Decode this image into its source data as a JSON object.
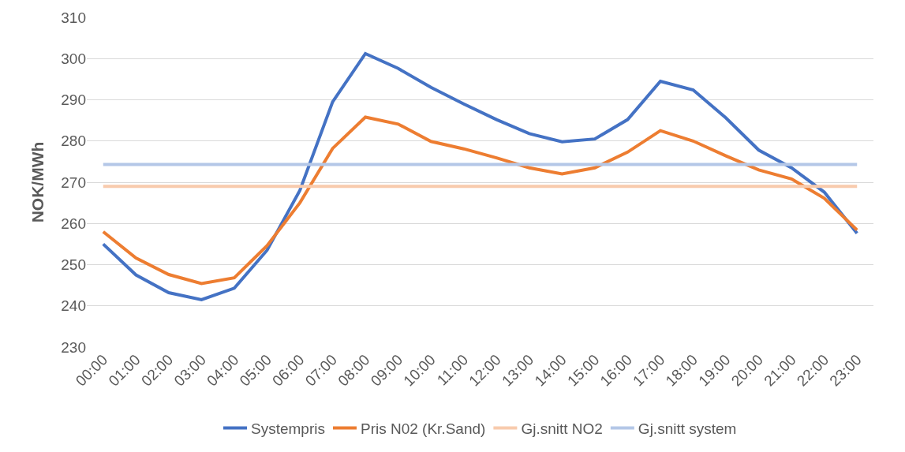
{
  "chart_data": {
    "type": "line",
    "ylabel": "NOK/MWh",
    "categories": [
      "00:00",
      "01:00",
      "02:00",
      "03:00",
      "04:00",
      "05:00",
      "06:00",
      "07:00",
      "08:00",
      "09:00",
      "10:00",
      "11:00",
      "12:00",
      "13:00",
      "14:00",
      "15:00",
      "16:00",
      "17:00",
      "18:00",
      "19:00",
      "20:00",
      "21:00",
      "22:00",
      "23:00"
    ],
    "series": [
      {
        "name": "Systempris",
        "color": "#4472c4",
        "values": [
          255,
          247.5,
          243.2,
          241.5,
          244.3,
          253.5,
          268,
          289.5,
          301.2,
          297.6,
          293,
          289,
          285.2,
          281.8,
          279.8,
          280.5,
          285.2,
          294.5,
          292.4,
          285.6,
          277.8,
          273.5,
          267.6,
          257.6
        ]
      },
      {
        "name": "Pris N02 (Kr.Sand)",
        "color": "#ed7d31",
        "values": [
          258,
          251.6,
          247.6,
          245.4,
          246.8,
          254.6,
          265,
          278.2,
          285.8,
          284.1,
          279.9,
          278.1,
          275.9,
          273.5,
          272,
          273.5,
          277.3,
          282.5,
          280,
          276.4,
          273,
          270.8,
          266.1,
          258.4
        ]
      },
      {
        "name": "Gj.snitt NO2",
        "color": "#f8cbad",
        "values": [
          269,
          269,
          269,
          269,
          269,
          269,
          269,
          269,
          269,
          269,
          269,
          269,
          269,
          269,
          269,
          269,
          269,
          269,
          269,
          269,
          269,
          269,
          269,
          269
        ]
      },
      {
        "name": "Gj.snitt system",
        "color": "#b4c7e7",
        "values": [
          274.3,
          274.3,
          274.3,
          274.3,
          274.3,
          274.3,
          274.3,
          274.3,
          274.3,
          274.3,
          274.3,
          274.3,
          274.3,
          274.3,
          274.3,
          274.3,
          274.3,
          274.3,
          274.3,
          274.3,
          274.3,
          274.3,
          274.3,
          274.3
        ]
      }
    ],
    "ylim": [
      230,
      310
    ],
    "yticks": [
      230,
      240,
      250,
      260,
      270,
      280,
      290,
      300,
      310
    ],
    "grid": "y",
    "legend": "bottom",
    "marker": "none",
    "line_style": "solid"
  }
}
